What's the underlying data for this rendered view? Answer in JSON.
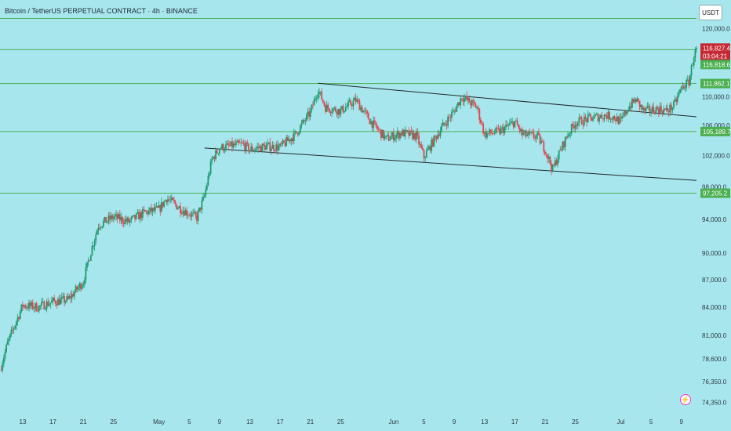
{
  "header": {
    "symbol_title": "Bitcoin / TetherUS PERPETUAL CONTRACT · 4h · BINANCE",
    "currency": "USDT"
  },
  "icons": {
    "alert": "lightning-icon"
  },
  "colors": {
    "background": "#a8e6ee",
    "up": "#1e9a6e",
    "down": "#e0464f",
    "level": "#4caf50",
    "trendline": "#1f2a2f",
    "price_tag": "#c62833",
    "level_tag": "#4caf50"
  },
  "chart_data": {
    "type": "candlestick",
    "title": "Bitcoin / TetherUS PERPETUAL CONTRACT · 4h · BINANCE",
    "y_axis": {
      "scale": "log",
      "range": [
        73500,
        123500
      ],
      "ticks": [
        120000,
        110000,
        106000,
        102000,
        98000,
        94000,
        90000,
        87000,
        84000,
        81000,
        78600,
        76350,
        74350
      ],
      "tick_labels": [
        "120,000.0",
        "110,000.0",
        "106,000.0",
        "102,000.0",
        "98,000.0",
        "94,000.0",
        "90,000.0",
        "87,000.0",
        "84,000.0",
        "81,000.0",
        "78,600.0",
        "76,350.0",
        "74,350.0"
      ]
    },
    "x_axis": {
      "start": "2025-04-10",
      "end": "2025-07-11",
      "ticks": [
        "2025-04-13",
        "2025-04-17",
        "2025-04-21",
        "2025-04-25",
        "2025-05-01",
        "2025-05-05",
        "2025-05-09",
        "2025-05-13",
        "2025-05-17",
        "2025-05-21",
        "2025-05-25",
        "2025-06-01",
        "2025-06-05",
        "2025-06-09",
        "2025-06-13",
        "2025-06-17",
        "2025-06-21",
        "2025-06-25",
        "2025-07-01",
        "2025-07-05",
        "2025-07-09"
      ],
      "tick_labels": [
        "13",
        "17",
        "21",
        "25",
        "May",
        "5",
        "9",
        "13",
        "17",
        "21",
        "25",
        "Jun",
        "5",
        "9",
        "13",
        "17",
        "21",
        "25",
        "Jul",
        "5",
        "9"
      ]
    },
    "price_path": [
      [
        "2025-04-10",
        77500
      ],
      [
        "2025-04-11",
        80200
      ],
      [
        "2025-04-12",
        82200
      ],
      [
        "2025-04-13",
        84200
      ],
      [
        "2025-04-15",
        84000
      ],
      [
        "2025-04-17",
        84600
      ],
      [
        "2025-04-19",
        84800
      ],
      [
        "2025-04-21",
        86800
      ],
      [
        "2025-04-22",
        90200
      ],
      [
        "2025-04-23",
        93300
      ],
      [
        "2025-04-25",
        94300
      ],
      [
        "2025-04-27",
        93700
      ],
      [
        "2025-04-29",
        94800
      ],
      [
        "2025-05-01",
        95200
      ],
      [
        "2025-05-02",
        96600
      ],
      [
        "2025-05-04",
        95200
      ],
      [
        "2025-05-06",
        94200
      ],
      [
        "2025-05-07",
        96800
      ],
      [
        "2025-05-08",
        101500
      ],
      [
        "2025-05-09",
        103000
      ],
      [
        "2025-05-12",
        103500
      ],
      [
        "2025-05-13",
        102800
      ],
      [
        "2025-05-15",
        103200
      ],
      [
        "2025-05-17",
        103100
      ],
      [
        "2025-05-19",
        104800
      ],
      [
        "2025-05-21",
        107800
      ],
      [
        "2025-05-22",
        111000
      ],
      [
        "2025-05-23",
        108500
      ],
      [
        "2025-05-25",
        108000
      ],
      [
        "2025-05-27",
        109500
      ],
      [
        "2025-05-29",
        106500
      ],
      [
        "2025-05-31",
        104200
      ],
      [
        "2025-06-02",
        105000
      ],
      [
        "2025-06-04",
        104600
      ],
      [
        "2025-06-05",
        101800
      ],
      [
        "2025-06-07",
        105200
      ],
      [
        "2025-06-09",
        108000
      ],
      [
        "2025-06-10",
        110000
      ],
      [
        "2025-06-12",
        108500
      ],
      [
        "2025-06-13",
        104800
      ],
      [
        "2025-06-15",
        105200
      ],
      [
        "2025-06-17",
        106500
      ],
      [
        "2025-06-18",
        104800
      ],
      [
        "2025-06-20",
        104500
      ],
      [
        "2025-06-21",
        102800
      ],
      [
        "2025-06-22",
        100200
      ],
      [
        "2025-06-23",
        102600
      ],
      [
        "2025-06-24",
        104800
      ],
      [
        "2025-06-25",
        106400
      ],
      [
        "2025-06-27",
        107000
      ],
      [
        "2025-06-29",
        107400
      ],
      [
        "2025-06-30",
        107200
      ],
      [
        "2025-07-01",
        106500
      ],
      [
        "2025-07-02",
        108500
      ],
      [
        "2025-07-03",
        109600
      ],
      [
        "2025-07-04",
        108000
      ],
      [
        "2025-07-06",
        108300
      ],
      [
        "2025-07-07",
        108000
      ],
      [
        "2025-07-08",
        108700
      ],
      [
        "2025-07-09",
        111200
      ],
      [
        "2025-07-10",
        112100
      ],
      [
        "2025-07-10T16:00",
        116000
      ],
      [
        "2025-07-11",
        116827.4
      ]
    ],
    "horizontal_levels": [
      {
        "price": 121600,
        "label": ""
      },
      {
        "price": 116818.6,
        "label": "116,818.6"
      },
      {
        "price": 111862.1,
        "label": "111,862.1"
      },
      {
        "price": 105189.7,
        "label": "105,189.7"
      },
      {
        "price": 97205.2,
        "label": "97,205.2"
      }
    ],
    "trendlines": [
      {
        "from": [
          "2025-05-22",
          111900
        ],
        "to": [
          "2025-07-11",
          107200
        ]
      },
      {
        "from": [
          "2025-05-07",
          103000
        ],
        "to": [
          "2025-07-11",
          98800
        ]
      }
    ],
    "last_price": {
      "value": "116,827.4",
      "countdown": "03:04:21"
    }
  }
}
